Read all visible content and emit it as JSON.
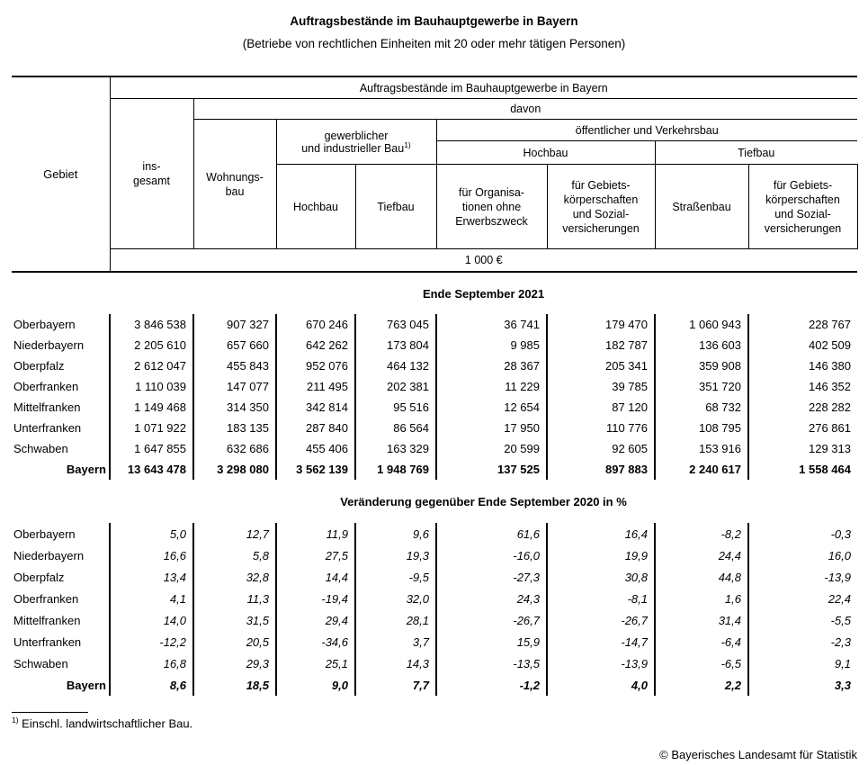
{
  "page": {
    "title": "Auftragsbestände im Bauhauptgewerbe in Bayern",
    "subtitle": "(Betriebe von rechtlichen Einheiten mit 20 oder mehr tätigen Personen)",
    "footnote_marker": "1)",
    "footnote_text": " Einschl. landwirtschaftlicher Bau.",
    "copyright": "© Bayerisches Landesamt für Statistik"
  },
  "colors": {
    "text": "#000000",
    "background": "#ffffff",
    "line": "#000000"
  },
  "table": {
    "header": {
      "gebiet": "Gebiet",
      "top": "Auftragsbestände im Bauhauptgewerbe in Bayern",
      "davon": "davon",
      "insgesamt": "ins-\ngesamt",
      "wohnungsbau": "Wohnungs-\nbau",
      "gewerblich_line1": "gewerblicher",
      "gewerblich_line2": "und industrieller Bau",
      "footnote_ref": "1)",
      "hochbau": "Hochbau",
      "tiefbau": "Tiefbau",
      "oeffentlich": "öffentlicher und Verkehrsbau",
      "oeffentlich_hochbau": "Hochbau",
      "oeffentlich_tiefbau": "Tiefbau",
      "fuer_organisationen": "für Organisa-\ntionen ohne\nErwerbszweck",
      "fuer_gebietskoerperschaften": "für Gebiets-\nkörperschaften\nund Sozial-\nversicherungen",
      "strassenbau": "Straßenbau",
      "unit": "1 000 €"
    },
    "sections": [
      {
        "title": "Ende September 2021",
        "rows": [
          {
            "label": "Oberbayern",
            "bold": false,
            "values": [
              "3 846 538",
              "907 327",
              "670 246",
              "763 045",
              "36 741",
              "179 470",
              "1 060 943",
              "228 767"
            ]
          },
          {
            "label": "Niederbayern",
            "bold": false,
            "values": [
              "2 205 610",
              "657 660",
              "642 262",
              "173 804",
              "9 985",
              "182 787",
              "136 603",
              "402 509"
            ]
          },
          {
            "label": "Oberpfalz",
            "bold": false,
            "values": [
              "2 612 047",
              "455 843",
              "952 076",
              "464 132",
              "28 367",
              "205 341",
              "359 908",
              "146 380"
            ]
          },
          {
            "label": "Oberfranken",
            "bold": false,
            "values": [
              "1 110 039",
              "147 077",
              "211 495",
              "202 381",
              "11 229",
              "39 785",
              "351 720",
              "146 352"
            ]
          },
          {
            "label": "Mittelfranken",
            "bold": false,
            "values": [
              "1 149 468",
              "314 350",
              "342 814",
              "95 516",
              "12 654",
              "87 120",
              "68 732",
              "228 282"
            ]
          },
          {
            "label": "Unterfranken",
            "bold": false,
            "values": [
              "1 071 922",
              "183 135",
              "287 840",
              "86 564",
              "17 950",
              "110 776",
              "108 795",
              "276 861"
            ]
          },
          {
            "label": "Schwaben",
            "bold": false,
            "values": [
              "1 647 855",
              "632 686",
              "455 406",
              "163 329",
              "20 599",
              "92 605",
              "153 916",
              "129 313"
            ]
          },
          {
            "label": "Bayern",
            "bold": true,
            "values": [
              "13 643 478",
              "3 298 080",
              "3 562 139",
              "1 948 769",
              "137 525",
              "897 883",
              "2 240 617",
              "1 558 464"
            ]
          }
        ]
      },
      {
        "title": "Veränderung gegenüber Ende September 2020 in %",
        "rows": [
          {
            "label": "Oberbayern",
            "bold": false,
            "values": [
              "5,0",
              "12,7",
              "11,9",
              "9,6",
              "61,6",
              "16,4",
              "-8,2",
              "-0,3"
            ]
          },
          {
            "label": "Niederbayern",
            "bold": false,
            "values": [
              "16,6",
              "5,8",
              "27,5",
              "19,3",
              "-16,0",
              "19,9",
              "24,4",
              "16,0"
            ]
          },
          {
            "label": "Oberpfalz",
            "bold": false,
            "values": [
              "13,4",
              "32,8",
              "14,4",
              "-9,5",
              "-27,3",
              "30,8",
              "44,8",
              "-13,9"
            ]
          },
          {
            "label": "Oberfranken",
            "bold": false,
            "values": [
              "4,1",
              "11,3",
              "-19,4",
              "32,0",
              "24,3",
              "-8,1",
              "1,6",
              "22,4"
            ]
          },
          {
            "label": "Mittelfranken",
            "bold": false,
            "values": [
              "14,0",
              "31,5",
              "29,4",
              "28,1",
              "-26,7",
              "-26,7",
              "31,4",
              "-5,5"
            ]
          },
          {
            "label": "Unterfranken",
            "bold": false,
            "values": [
              "-12,2",
              "20,5",
              "-34,6",
              "3,7",
              "15,9",
              "-14,7",
              "-6,4",
              "-2,3"
            ]
          },
          {
            "label": "Schwaben",
            "bold": false,
            "values": [
              "16,8",
              "29,3",
              "25,1",
              "14,3",
              "-13,5",
              "-13,9",
              "-6,5",
              "9,1"
            ]
          },
          {
            "label": "Bayern",
            "bold": true,
            "values": [
              "8,6",
              "18,5",
              "9,0",
              "7,7",
              "-1,2",
              "4,0",
              "2,2",
              "3,3"
            ]
          }
        ]
      }
    ]
  }
}
